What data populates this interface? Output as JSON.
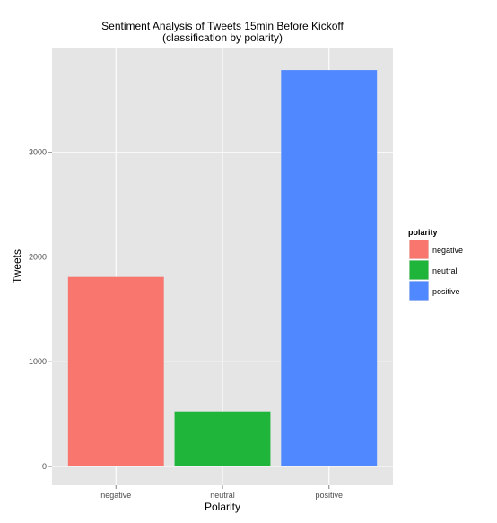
{
  "chart_data": {
    "type": "bar",
    "title": "Sentiment Analysis of Tweets 15min Before Kickoff",
    "subtitle": "(classification by polarity)",
    "xlabel": "Polarity",
    "ylabel": "Tweets",
    "categories": [
      "negative",
      "neutral",
      "positive"
    ],
    "values": [
      1810,
      525,
      3785
    ],
    "colors": [
      "#F8766D",
      "#1FB43A",
      "#5088FF"
    ],
    "ylim": [
      -180,
      4000
    ],
    "yticks": [
      0,
      1000,
      2000,
      3000
    ],
    "yticklabels": [
      "0",
      "1000",
      "2000",
      "3000"
    ],
    "grid": true,
    "panel_background": "#E5E5E5",
    "legend": {
      "title": "polarity",
      "placement": "right",
      "entries": [
        "negative",
        "neutral",
        "positive"
      ]
    }
  }
}
